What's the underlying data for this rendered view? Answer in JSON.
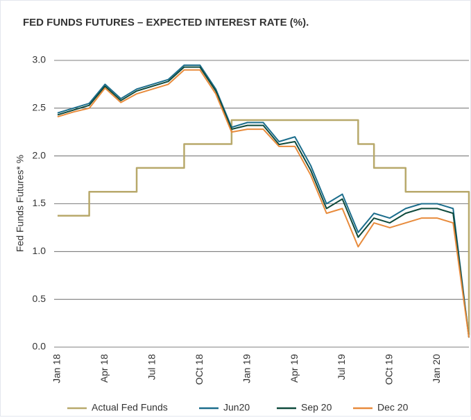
{
  "chart_data": {
    "type": "line",
    "title": "FED FUNDS FUTURES – EXPECTED INTEREST RATE (%).",
    "y_label": "Fed Funds Futures* %",
    "categories": [
      "Jan 18",
      null,
      null,
      "Apr 18",
      null,
      null,
      "Jul 18",
      null,
      null,
      "OCt 18",
      null,
      null,
      "Jan 19",
      null,
      null,
      "Apr 19",
      null,
      null,
      "Jul 19",
      null,
      null,
      "OCt 19",
      null,
      null,
      "Jan 20",
      null,
      null
    ],
    "ylim": [
      0,
      3.0
    ],
    "yticks": [
      {
        "value": 0,
        "label": "0.0"
      },
      0.5,
      {
        "value": 1,
        "label": "1.0"
      },
      1.5,
      {
        "value": 2,
        "label": "2.0"
      },
      2.5,
      {
        "value": 3,
        "label": "3.0"
      }
    ],
    "grid": true,
    "legend": "bottom",
    "series": [
      {
        "name": "Actual Fed Funds",
        "color": "#b8a96b",
        "drawstyle": "steps-post",
        "values": [
          1.375,
          1.375,
          1.625,
          1.625,
          1.625,
          1.875,
          1.875,
          1.875,
          2.125,
          2.125,
          2.125,
          2.375,
          2.375,
          2.375,
          2.375,
          2.375,
          2.375,
          2.375,
          2.375,
          2.125,
          1.875,
          1.875,
          1.625,
          1.625,
          1.625,
          1.625,
          0.125
        ]
      },
      {
        "name": "Jun20",
        "color": "#1b6d8c",
        "values": [
          2.45,
          2.5,
          2.55,
          2.75,
          2.6,
          2.7,
          2.75,
          2.8,
          2.95,
          2.95,
          2.7,
          2.3,
          2.35,
          2.35,
          2.15,
          2.2,
          1.9,
          1.5,
          1.6,
          1.2,
          1.4,
          1.35,
          1.45,
          1.5,
          1.5,
          1.45,
          0.1
        ]
      },
      {
        "name": "Sep 20",
        "color": "#0e4a3c",
        "values": [
          2.43,
          2.48,
          2.53,
          2.73,
          2.58,
          2.68,
          2.73,
          2.78,
          2.93,
          2.93,
          2.68,
          2.28,
          2.32,
          2.32,
          2.12,
          2.15,
          1.85,
          1.45,
          1.55,
          1.15,
          1.35,
          1.3,
          1.4,
          1.45,
          1.45,
          1.4,
          0.1
        ]
      },
      {
        "name": "Dec 20",
        "color": "#e88b3c",
        "values": [
          2.41,
          2.46,
          2.5,
          2.71,
          2.56,
          2.65,
          2.7,
          2.75,
          2.9,
          2.9,
          2.65,
          2.25,
          2.28,
          2.28,
          2.1,
          2.1,
          1.8,
          1.4,
          1.45,
          1.05,
          1.3,
          1.25,
          1.3,
          1.35,
          1.35,
          1.3,
          0.1
        ]
      }
    ]
  }
}
